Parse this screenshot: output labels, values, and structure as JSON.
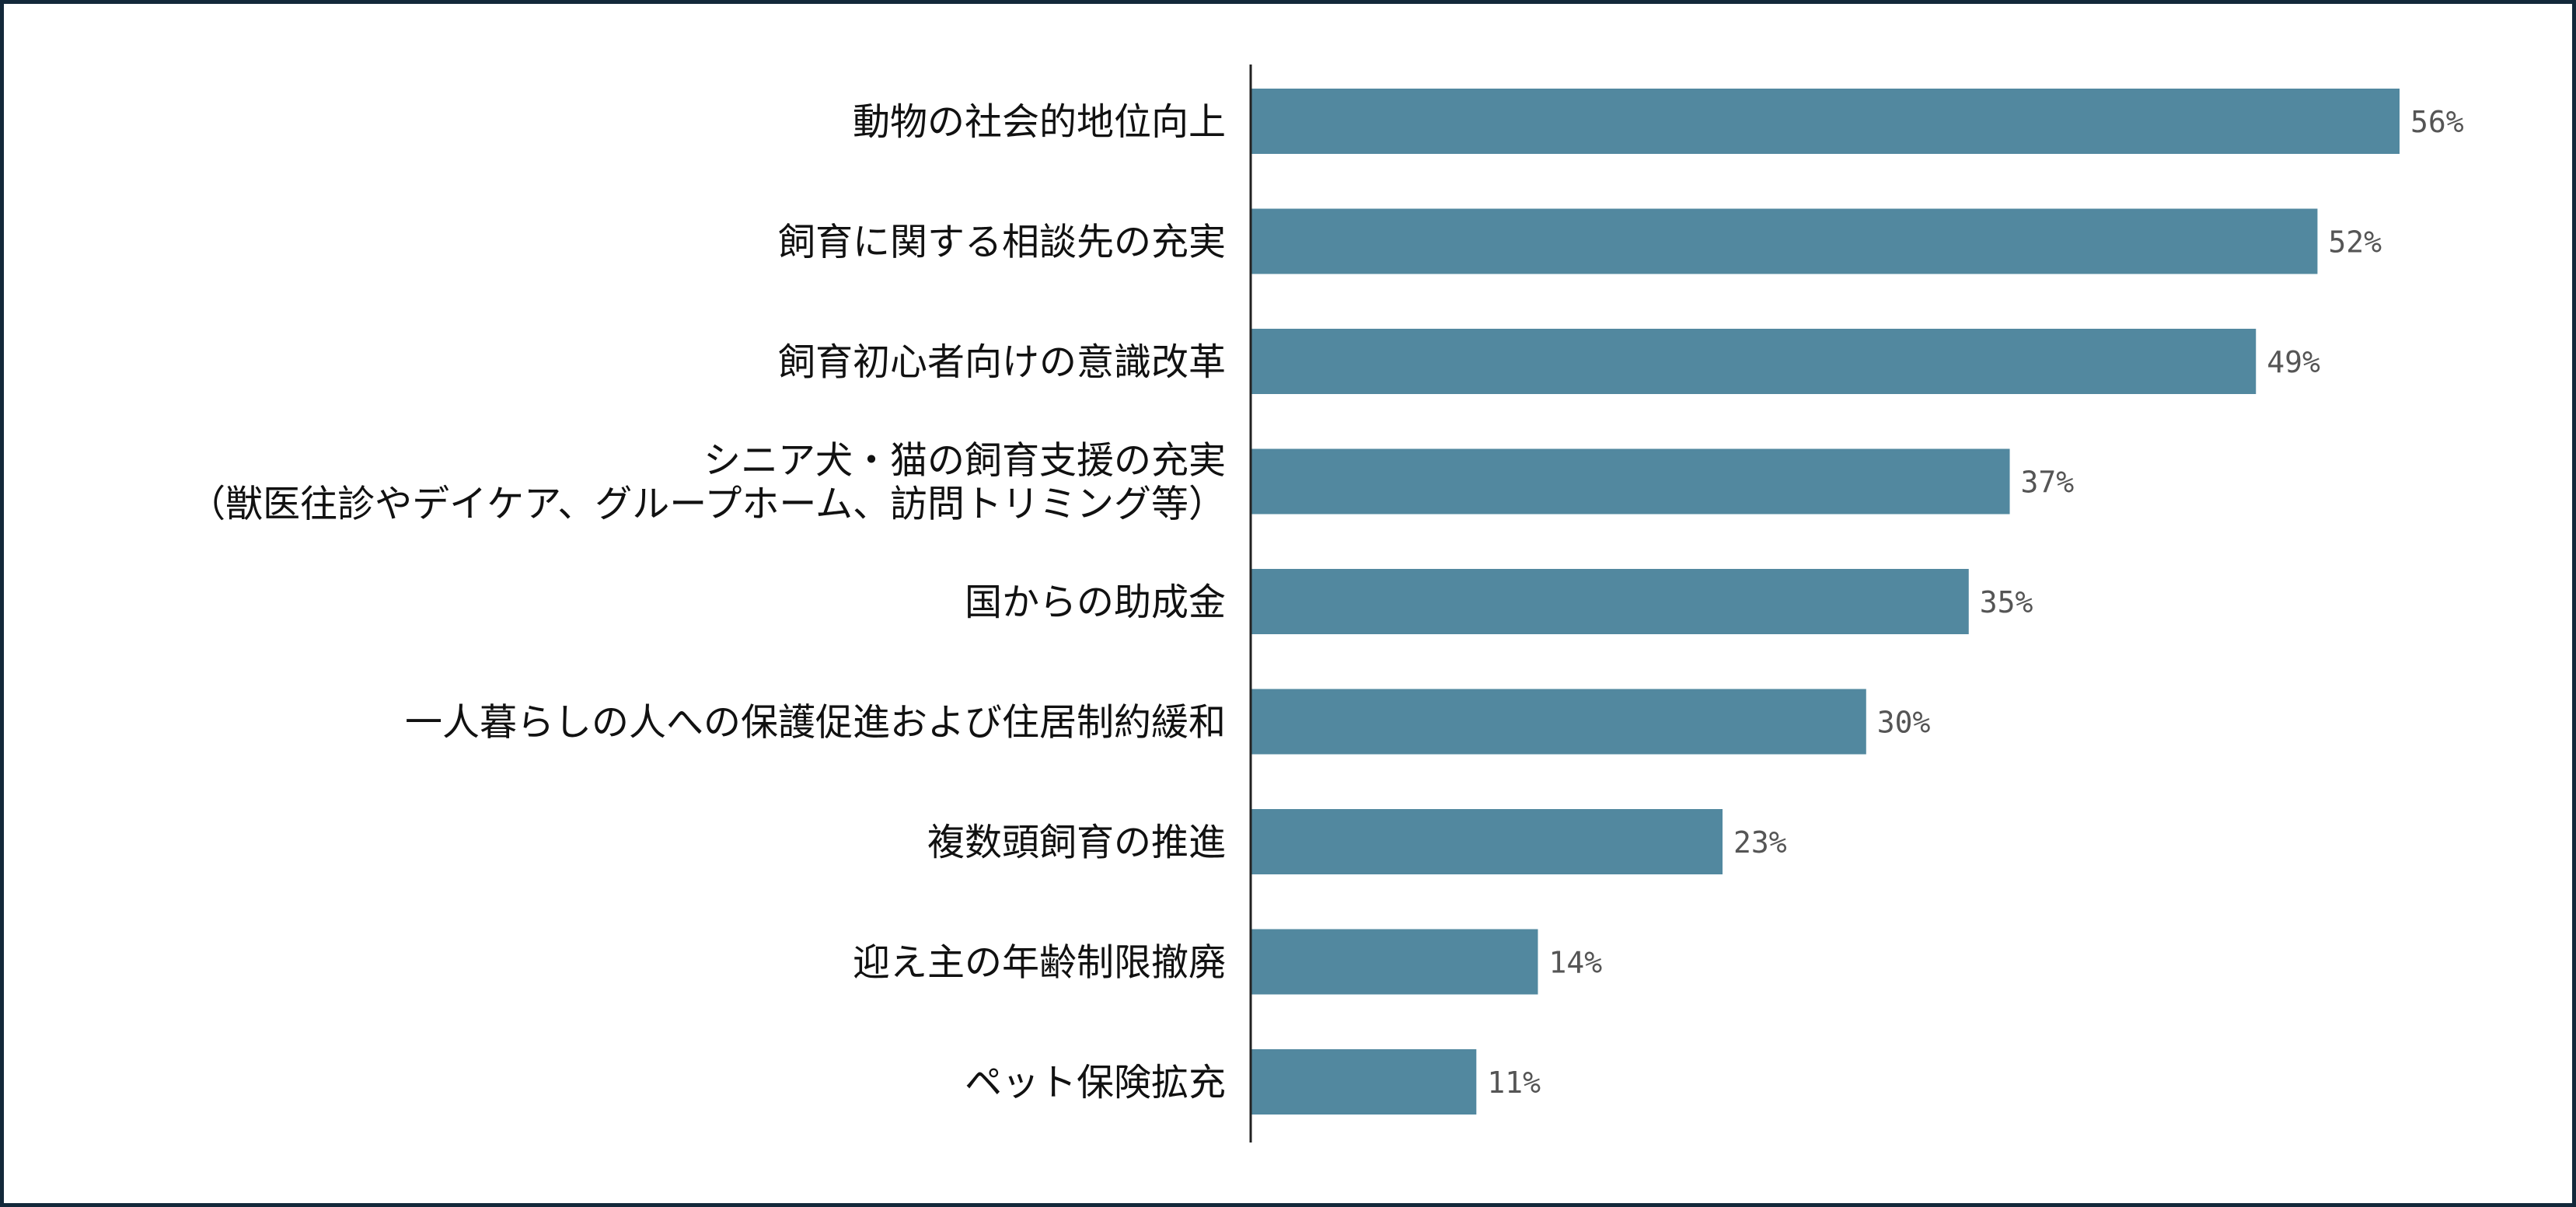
{
  "chart_data": {
    "type": "bar",
    "orientation": "horizontal",
    "title": "",
    "xlabel": "",
    "ylabel": "",
    "xlim": [
      0,
      56
    ],
    "grid": false,
    "legend": "none",
    "bar_color": "#52889f",
    "categories": [
      [
        "動物の社会的地位向上"
      ],
      [
        "飼育に関する相談先の充実"
      ],
      [
        "飼育初心者向けの意識改革"
      ],
      [
        "シニア犬・猫の飼育支援の充実",
        "（獣医往診やデイケア、グループホーム、訪問トリミング等）"
      ],
      [
        "国からの助成金"
      ],
      [
        "一人暮らしの人への保護促進および住居制約緩和"
      ],
      [
        "複数頭飼育の推進"
      ],
      [
        "迎え主の年齢制限撤廃"
      ],
      [
        "ペット保険拡充"
      ]
    ],
    "values": [
      56,
      52,
      49,
      37,
      35,
      30,
      23,
      14,
      11
    ],
    "value_labels": [
      "56%",
      "52%",
      "49%",
      "37%",
      "35%",
      "30%",
      "23%",
      "14%",
      "11%"
    ]
  }
}
